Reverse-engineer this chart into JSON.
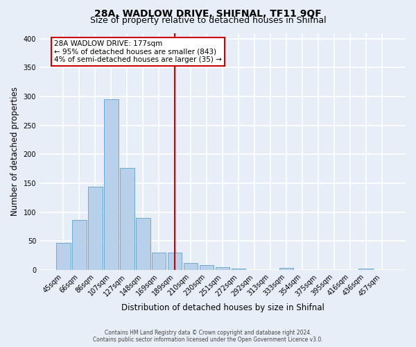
{
  "title": "28A, WADLOW DRIVE, SHIFNAL, TF11 9QF",
  "subtitle": "Size of property relative to detached houses in Shifnal",
  "xlabel": "Distribution of detached houses by size in Shifnal",
  "ylabel": "Number of detached properties",
  "bar_labels": [
    "45sqm",
    "66sqm",
    "86sqm",
    "107sqm",
    "127sqm",
    "148sqm",
    "169sqm",
    "189sqm",
    "210sqm",
    "230sqm",
    "251sqm",
    "272sqm",
    "292sqm",
    "313sqm",
    "333sqm",
    "354sqm",
    "375sqm",
    "395sqm",
    "416sqm",
    "436sqm",
    "457sqm"
  ],
  "bar_heights": [
    47,
    86,
    144,
    295,
    176,
    90,
    30,
    30,
    12,
    8,
    4,
    2,
    0,
    0,
    3,
    0,
    0,
    0,
    0,
    2,
    0
  ],
  "bar_color": "#b8d0ea",
  "bar_edge_color": "#6aaad4",
  "ylim": [
    0,
    410
  ],
  "yticks": [
    0,
    50,
    100,
    150,
    200,
    250,
    300,
    350,
    400
  ],
  "vline_x_index": 7.0,
  "vline_color": "#cc0000",
  "annotation_text": "28A WADLOW DRIVE: 177sqm\n← 95% of detached houses are smaller (843)\n4% of semi-detached houses are larger (35) →",
  "annotation_box_color": "#ffffff",
  "annotation_box_edge_color": "#cc0000",
  "bg_color": "#e8eef8",
  "plot_bg_color": "#e8eef8",
  "footer_line1": "Contains HM Land Registry data © Crown copyright and database right 2024.",
  "footer_line2": "Contains public sector information licensed under the Open Government Licence v3.0.",
  "grid_color": "#ffffff",
  "title_fontsize": 10,
  "subtitle_fontsize": 9,
  "axis_label_fontsize": 8.5,
  "tick_fontsize": 7,
  "annotation_fontsize": 7.5,
  "footer_fontsize": 5.5
}
